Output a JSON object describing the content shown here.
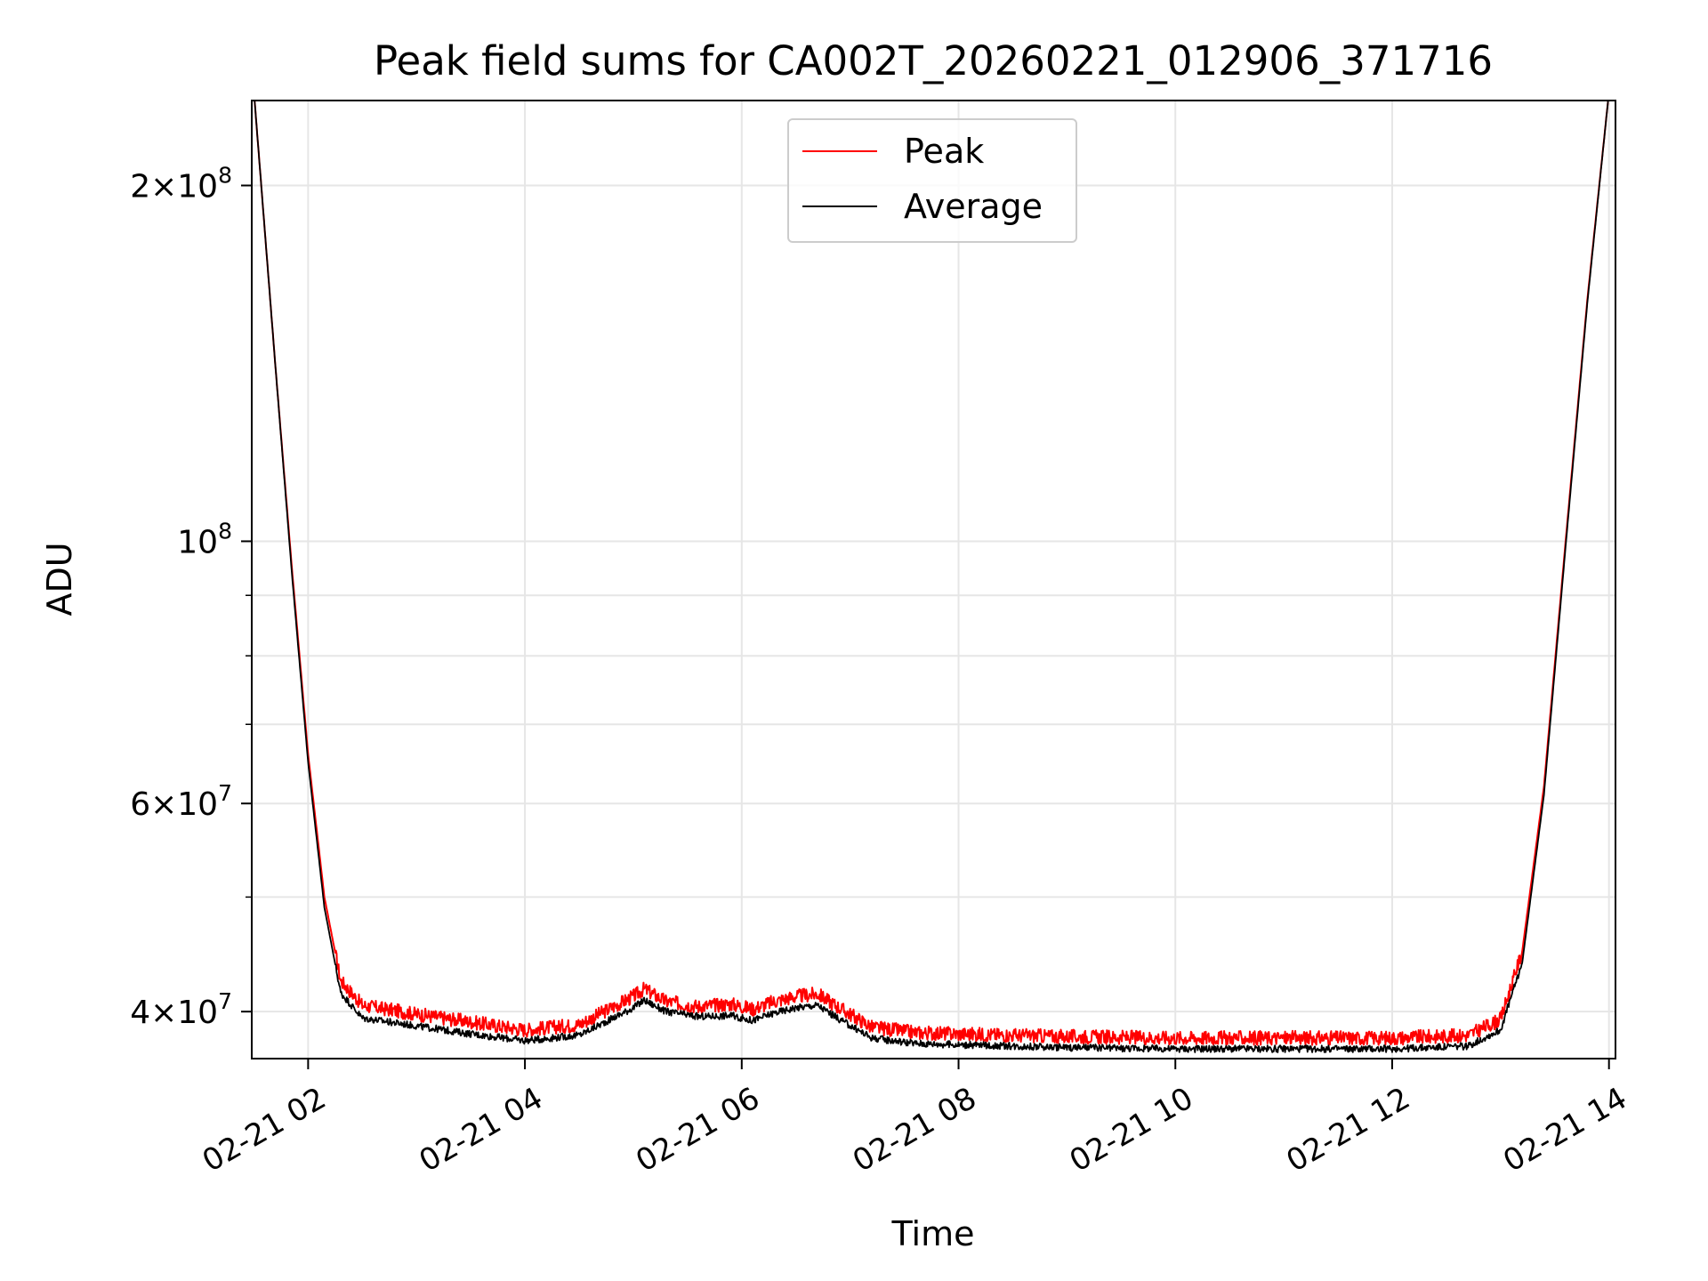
{
  "chart_data": {
    "type": "line",
    "title": "Peak field sums for CA002T_20260221_012906_371716",
    "xlabel": "Time",
    "ylabel": "ADU",
    "y_scale": "log",
    "grid": true,
    "legend_position": "upper center",
    "xlim_hours": [
      1.48,
      14.06
    ],
    "ylim": [
      36500000,
      236000000
    ],
    "x_ticks": [
      {
        "hour": 2,
        "label": "02-21 02"
      },
      {
        "hour": 4,
        "label": "02-21 04"
      },
      {
        "hour": 6,
        "label": "02-21 06"
      },
      {
        "hour": 8,
        "label": "02-21 08"
      },
      {
        "hour": 10,
        "label": "02-21 10"
      },
      {
        "hour": 12,
        "label": "02-21 12"
      },
      {
        "hour": 14,
        "label": "02-21 14"
      }
    ],
    "y_major_ticks": [
      {
        "value": 40000000,
        "mantissa": "4×10",
        "exp": "7"
      },
      {
        "value": 60000000,
        "mantissa": "6×10",
        "exp": "7"
      },
      {
        "value": 100000000,
        "mantissa": "10",
        "exp": "8"
      },
      {
        "value": 200000000,
        "mantissa": "2×10",
        "exp": "8"
      }
    ],
    "y_minor_ticks": [
      50000000,
      70000000,
      80000000,
      90000000
    ],
    "series": [
      {
        "name": "Peak",
        "color": "#ff0000",
        "x_hours": [
          1.5,
          1.7,
          1.85,
          2.0,
          2.15,
          2.3,
          2.5,
          3.0,
          3.5,
          4.0,
          4.5,
          5.0,
          5.1,
          5.3,
          5.6,
          5.9,
          6.1,
          6.3,
          6.5,
          6.7,
          6.9,
          7.2,
          7.6,
          8.0,
          9.0,
          10.0,
          11.0,
          12.0,
          12.7,
          13.0,
          13.2,
          13.4,
          13.6,
          13.8,
          14.0
        ],
        "y": [
          240000000,
          140000000,
          95000000,
          66000000,
          50000000,
          42500000,
          40500000,
          39800000,
          39200000,
          38600000,
          39000000,
          41200000,
          41800000,
          40800000,
          40400000,
          40600000,
          40200000,
          40800000,
          41200000,
          41400000,
          40300000,
          38800000,
          38400000,
          38300000,
          38100000,
          38000000,
          38000000,
          38000000,
          38200000,
          39400000,
          45000000,
          62000000,
          100000000,
          160000000,
          240000000
        ]
      },
      {
        "name": "Average",
        "color": "#000000",
        "x_hours": [
          1.5,
          1.7,
          1.85,
          2.0,
          2.15,
          2.3,
          2.5,
          3.0,
          3.5,
          4.0,
          4.5,
          5.0,
          5.1,
          5.3,
          5.6,
          5.9,
          6.1,
          6.3,
          6.5,
          6.7,
          6.9,
          7.2,
          7.6,
          8.0,
          9.0,
          10.0,
          11.0,
          12.0,
          12.7,
          13.0,
          13.2,
          13.4,
          13.6,
          13.8,
          14.0
        ],
        "y": [
          240000000,
          140000000,
          94000000,
          65000000,
          49000000,
          41500000,
          39500000,
          38900000,
          38300000,
          37800000,
          38200000,
          40300000,
          40900000,
          40000000,
          39600000,
          39700000,
          39300000,
          39900000,
          40300000,
          40500000,
          39400000,
          38000000,
          37600000,
          37500000,
          37300000,
          37200000,
          37200000,
          37200000,
          37400000,
          38600000,
          44000000,
          61000000,
          99000000,
          159000000,
          240000000
        ]
      }
    ]
  }
}
